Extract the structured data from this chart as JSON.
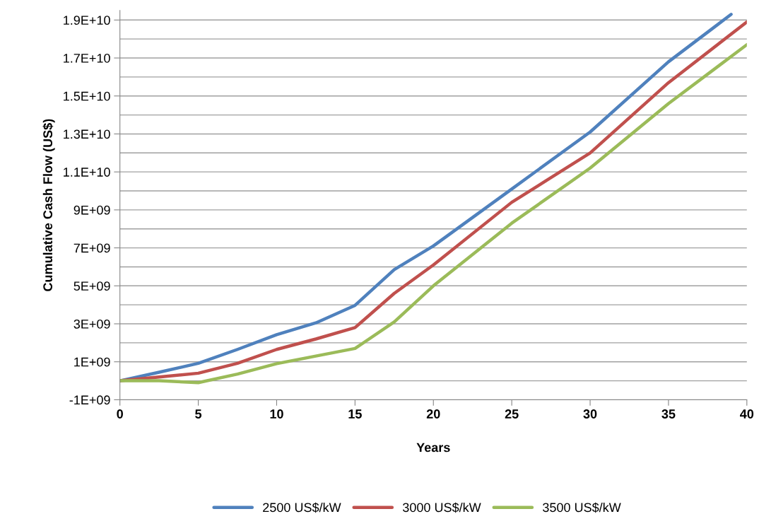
{
  "chart_data": {
    "type": "line",
    "xlabel": "Years",
    "ylabel": "Cumulative Cash Flow (US$)",
    "series": [
      {
        "name": "2500 US$/kW",
        "color": "#4f81bd",
        "x": [
          0,
          2.5,
          5,
          7.5,
          10,
          12.5,
          15,
          17.5,
          20,
          25,
          30,
          35,
          39
        ],
        "values": [
          0,
          450000000.0,
          920000000.0,
          1650000000.0,
          2430000000.0,
          3050000000.0,
          3970000000.0,
          5850000000.0,
          7100000000.0,
          10100000000.0,
          13100000000.0,
          16800000000.0,
          19300000000.0
        ]
      },
      {
        "name": "3000 US$/kW",
        "color": "#c0504d",
        "x": [
          0,
          2.5,
          5,
          7.5,
          10,
          12.5,
          15,
          17.5,
          20,
          25,
          30,
          35,
          40
        ],
        "values": [
          0,
          200000000.0,
          400000000.0,
          920000000.0,
          1650000000.0,
          2200000000.0,
          2800000000.0,
          4600000000.0,
          6100000000.0,
          9400000000.0,
          12000000000.0,
          15700000000.0,
          18900000000.0
        ]
      },
      {
        "name": "3500 US$/kW",
        "color": "#9bbb59",
        "x": [
          0,
          2.5,
          5,
          7.5,
          10,
          12.5,
          15,
          17.5,
          20,
          25,
          30,
          35,
          40
        ],
        "values": [
          0,
          0,
          -100000000.0,
          350000000.0,
          900000000.0,
          1300000000.0,
          1700000000.0,
          3100000000.0,
          5000000000.0,
          8300000000.0,
          11200000000.0,
          14600000000.0,
          17700000000.0
        ]
      }
    ],
    "xlim": [
      0,
      40
    ],
    "xticks": [
      0,
      5,
      10,
      15,
      20,
      25,
      30,
      35,
      40
    ],
    "ylim": [
      -1000000000.0,
      19500000000.0
    ],
    "yticks": [
      {
        "value": -1000000000.0,
        "label": "-1E+09"
      },
      {
        "value": 0,
        "label": null
      },
      {
        "value": 1000000000.0,
        "label": "1E+09"
      },
      {
        "value": 2000000000.0,
        "label": null
      },
      {
        "value": 3000000000.0,
        "label": "3E+09"
      },
      {
        "value": 4000000000.0,
        "label": null
      },
      {
        "value": 5000000000.0,
        "label": "5E+09"
      },
      {
        "value": 6000000000.0,
        "label": null
      },
      {
        "value": 7000000000.0,
        "label": "7E+09"
      },
      {
        "value": 8000000000.0,
        "label": null
      },
      {
        "value": 9000000000.0,
        "label": "9E+09"
      },
      {
        "value": 10000000000.0,
        "label": null
      },
      {
        "value": 11000000000.0,
        "label": "1.1E+10"
      },
      {
        "value": 12000000000.0,
        "label": null
      },
      {
        "value": 13000000000.0,
        "label": "1.3E+10"
      },
      {
        "value": 14000000000.0,
        "label": null
      },
      {
        "value": 15000000000.0,
        "label": "1.5E+10"
      },
      {
        "value": 16000000000.0,
        "label": null
      },
      {
        "value": 17000000000.0,
        "label": "1.7E+10"
      },
      {
        "value": 18000000000.0,
        "label": null
      },
      {
        "value": 19000000000.0,
        "label": "1.9E+10"
      }
    ],
    "grid": "y",
    "legend": "bottom",
    "marker": "none",
    "line_style": "solid"
  }
}
